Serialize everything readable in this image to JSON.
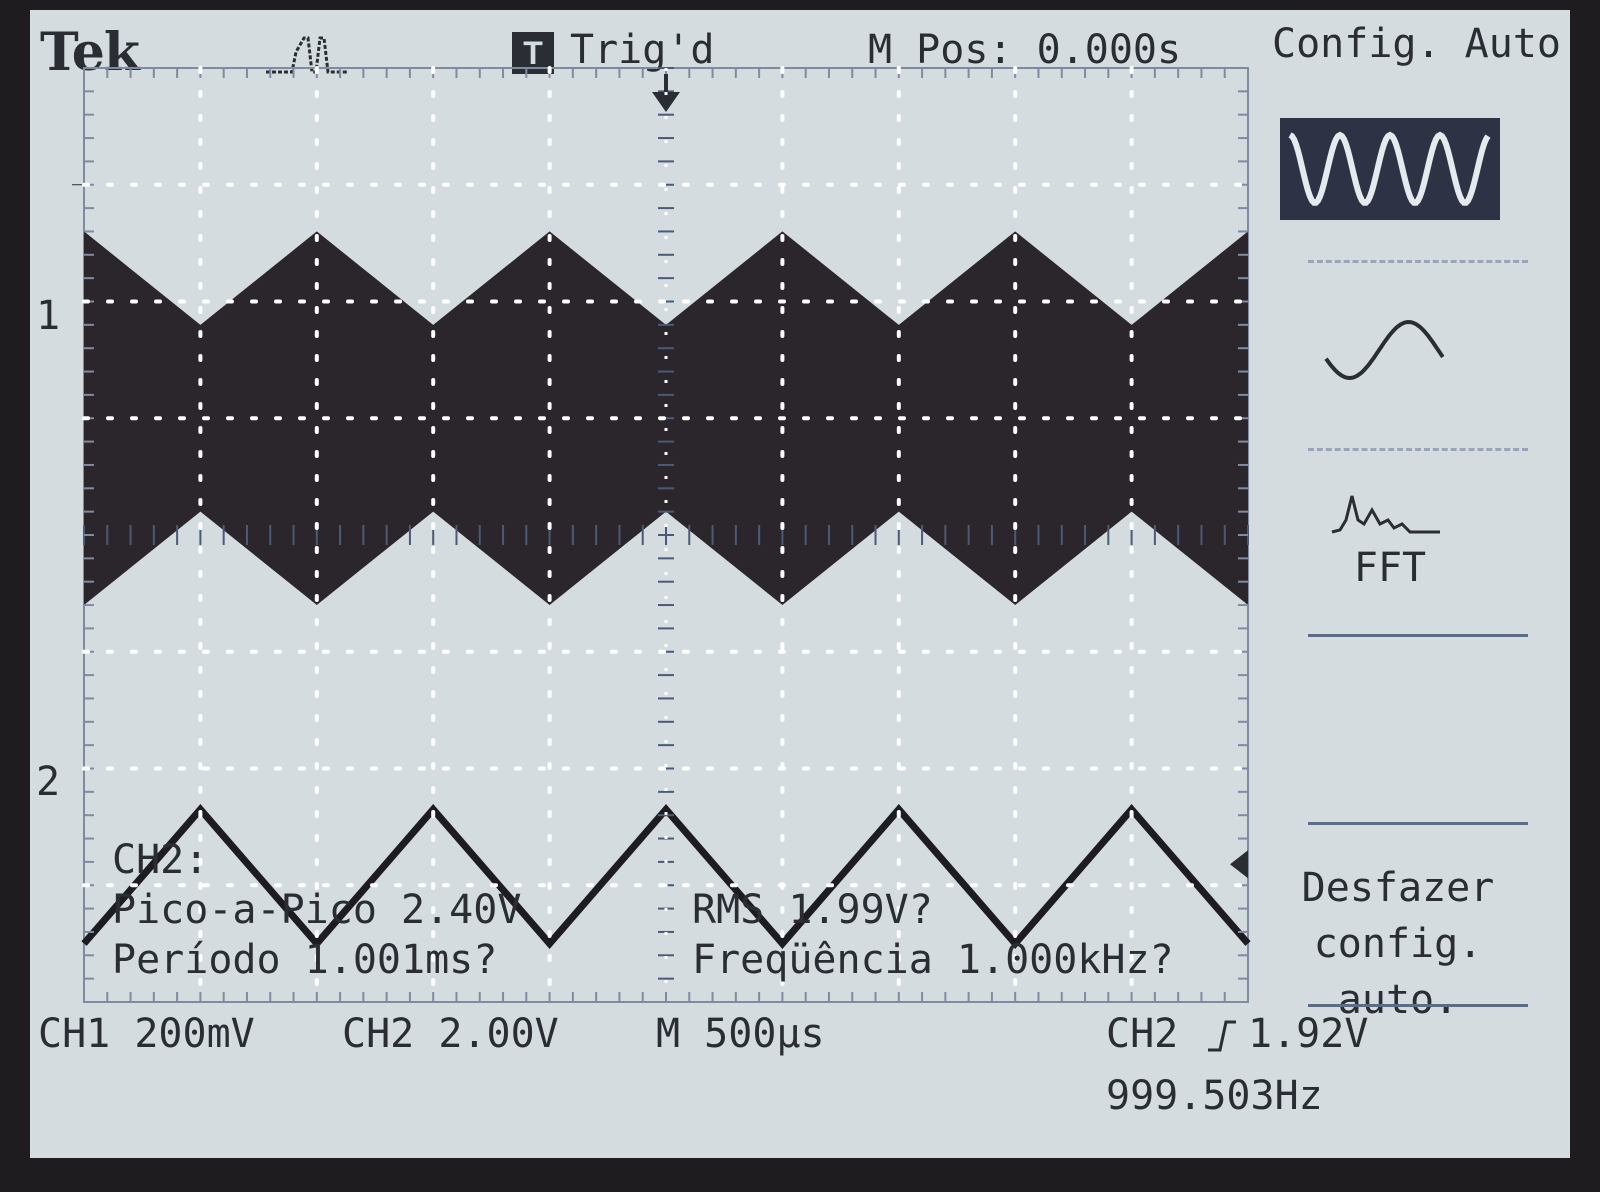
{
  "header": {
    "brand": "Tek",
    "trigger_badge": "T",
    "trigger_status": "Trig'd",
    "main_position": "M Pos: 0.000s",
    "menu_title": "Config. Auto."
  },
  "channels": {
    "ch1_marker": "1",
    "ch2_marker": "2"
  },
  "measurements": {
    "channel": "CH2:",
    "peak_to_peak": "Pico-a-Pico 2.40V",
    "period": "Período 1.001ms?",
    "rms": "RMS 1.99V?",
    "frequency": "Freqüência 1.000kHz?"
  },
  "menu": {
    "items": [
      {
        "icon": "multi-cycle-sine-icon",
        "label": "",
        "selected": true
      },
      {
        "icon": "single-cycle-sine-icon",
        "label": ""
      },
      {
        "icon": "fft-spectrum-icon",
        "label": "FFT"
      },
      {
        "icon": "",
        "label": ""
      },
      {
        "icon": "",
        "label": "Desfazer\nconfig. auto."
      }
    ],
    "undo_line1": "Desfazer",
    "undo_line2": "config. auto."
  },
  "status_bar": {
    "ch1_scale": "CH1  200mV",
    "ch2_scale": "CH2  2.00V",
    "timebase": "M 500µs",
    "trigger_source": "CH2",
    "trigger_level": "1.92V",
    "trigger_frequency": "999.503Hz"
  },
  "chart_data": {
    "type": "line",
    "title": "",
    "xlabel": "",
    "ylabel": "",
    "series": [
      {
        "channel": "CH1",
        "shape": "triangle-amplitude-modulated-band",
        "period_ms": 1.0,
        "x_ms": [
          -2.5,
          -2.0,
          -1.5,
          -1.0,
          -0.5,
          0.0,
          0.5,
          1.0,
          1.5,
          2.0,
          2.5
        ],
        "upper_div": [
          2.6,
          1.8,
          2.6,
          1.8,
          2.6,
          1.8,
          2.6,
          1.8,
          2.6,
          1.8,
          2.6
        ],
        "lower_div": [
          -0.6,
          0.2,
          -0.6,
          0.2,
          -0.6,
          0.2,
          -0.6,
          0.2,
          -0.6,
          0.2,
          -0.6
        ],
        "color": "#2b262b"
      },
      {
        "channel": "CH2",
        "shape": "triangle",
        "period_ms": 1.0,
        "x_ms": [
          -2.5,
          -2.0,
          -1.5,
          -1.0,
          -0.5,
          0.0,
          0.5,
          1.0,
          1.5,
          2.0,
          2.5
        ],
        "y_div": [
          0.4,
          1.55,
          0.4,
          1.55,
          0.4,
          1.55,
          0.4,
          1.55,
          0.4,
          1.55,
          0.4
        ],
        "color": "#1c1c22"
      }
    ],
    "x_divisions": 10,
    "y_divisions": 8,
    "grid": true
  },
  "colors": {
    "screen_bg": "#d5dce0",
    "trace": "#2b262b",
    "grid_dots": "#ffffff",
    "text": "#2b2d34",
    "selected_menu_bg": "#2d3245",
    "separator": "#5c6b86"
  }
}
